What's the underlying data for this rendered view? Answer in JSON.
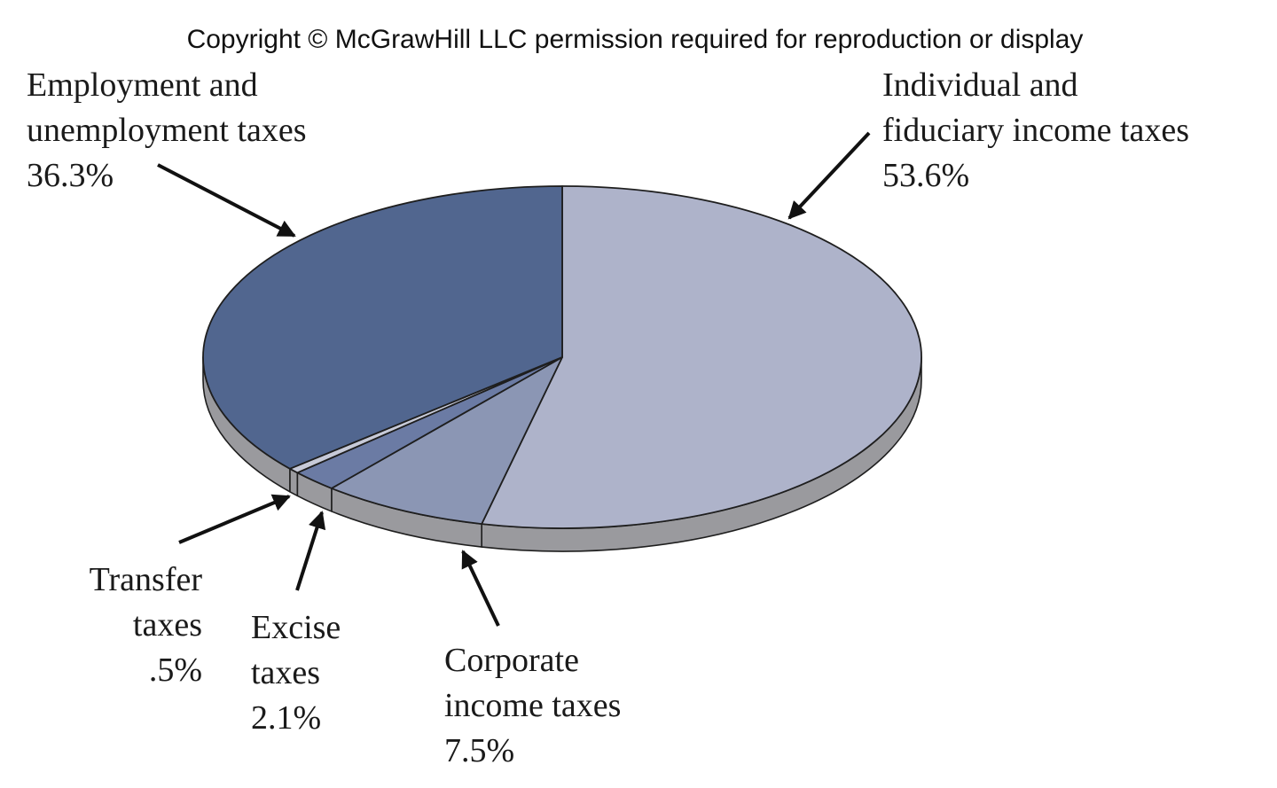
{
  "copyright": "Copyright © McGrawHill LLC permission required for reproduction or display",
  "chart_data": {
    "type": "pie",
    "title": "",
    "slices": [
      {
        "label_lines": [
          "Individual and",
          "fiduciary income taxes"
        ],
        "value": 53.6,
        "value_label": "53.6%",
        "color": "#aeb3ca"
      },
      {
        "label_lines": [
          "Corporate",
          "income taxes"
        ],
        "value": 7.5,
        "value_label": "7.5%",
        "color": "#8b96b4"
      },
      {
        "label_lines": [
          "Excise",
          "taxes"
        ],
        "value": 2.1,
        "value_label": "2.1%",
        "color": "#6b7ba4"
      },
      {
        "label_lines": [
          "Transfer",
          "taxes"
        ],
        "value": 0.5,
        "value_label": ".5%",
        "color": "#c7cad8"
      },
      {
        "label_lines": [
          "Employment and",
          "unemployment taxes"
        ],
        "value": 36.3,
        "value_label": "36.3%",
        "color": "#51668f"
      }
    ],
    "side_color": "#9a9a9e",
    "edge_color": "#1e1e1e"
  }
}
